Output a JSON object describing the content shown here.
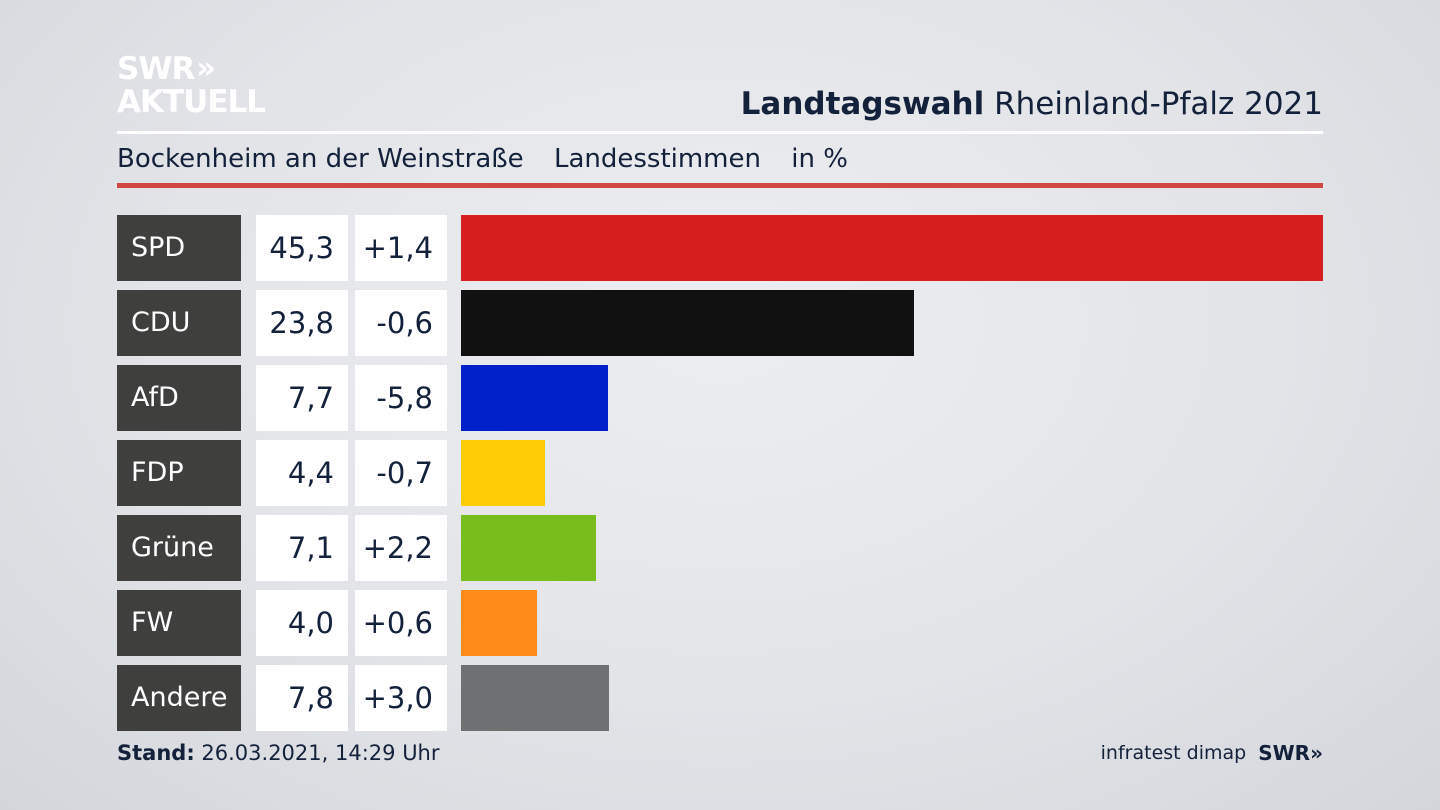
{
  "logo": {
    "line1": "SWR",
    "chevrons": "»",
    "line2": "AKTUELL"
  },
  "header": {
    "title_bold": "Landtagswahl",
    "title_rest": "Rheinland-Pfalz 2021"
  },
  "subheader": {
    "place": "Bockenheim an der Weinstraße",
    "measure": "Landesstimmen",
    "unit": "in %"
  },
  "chart_data": {
    "type": "bar",
    "orientation": "horizontal",
    "categories": [
      "SPD",
      "CDU",
      "AfD",
      "FDP",
      "Grüne",
      "FW",
      "Andere"
    ],
    "values": [
      45.3,
      23.8,
      7.7,
      4.4,
      7.1,
      4.0,
      7.8
    ],
    "value_labels": [
      "45,3",
      "23,8",
      "7,7",
      "4,4",
      "7,1",
      "4,0",
      "7,8"
    ],
    "differences": [
      1.4,
      -0.6,
      -5.8,
      -0.7,
      2.2,
      0.6,
      3.0
    ],
    "difference_labels": [
      "+1,4",
      "-0,6",
      "-5,8",
      "-0,7",
      "+2,2",
      "+0,6",
      "+3,0"
    ],
    "colors": [
      "#d61f1f",
      "#111111",
      "#0021c9",
      "#ffcc05",
      "#79bd1c",
      "#ff8c19",
      "#6f7072"
    ],
    "xlim": [
      0,
      45.3
    ],
    "grid": false,
    "legend": "none"
  },
  "footer": {
    "stand_label": "Stand:",
    "stand_value": "26.03.2021, 14:29 Uhr",
    "source": "infratest dimap",
    "brand": "SWR",
    "brand_chevrons": "»"
  }
}
